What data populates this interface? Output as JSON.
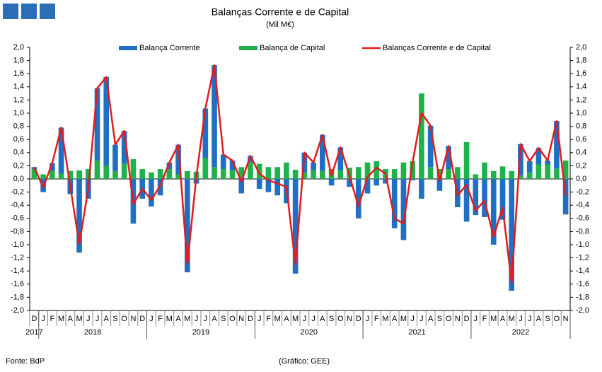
{
  "chart_data": {
    "type": "bar",
    "title": "Balanças Corrente e de Capital",
    "subtitle": "(Mil M€)",
    "source": "Fonte: BdP",
    "credit": "(Gráfico: GEE)",
    "stacked": true,
    "categories": [
      "D",
      "J",
      "F",
      "M",
      "A",
      "M",
      "J",
      "J",
      "A",
      "S",
      "O",
      "N",
      "D",
      "J",
      "F",
      "M",
      "A",
      "M",
      "J",
      "J",
      "A",
      "S",
      "O",
      "N",
      "D",
      "J",
      "F",
      "M",
      "A",
      "M",
      "J",
      "J",
      "A",
      "S",
      "O",
      "N",
      "D",
      "J",
      "F",
      "M",
      "A",
      "M",
      "J",
      "J",
      "A",
      "S",
      "O",
      "N",
      "D",
      "J",
      "F",
      "M",
      "A",
      "M",
      "J",
      "J",
      "A",
      "S",
      "O",
      "N"
    ],
    "years": [
      "2017",
      "2018",
      "2019",
      "2020",
      "2021",
      "2022"
    ],
    "series": [
      {
        "name": "Balança Corrente",
        "type": "bar",
        "color": "#1f6fc5",
        "values": [
          0.03,
          -0.2,
          0.12,
          0.7,
          -0.23,
          -1.12,
          -0.3,
          1.1,
          1.35,
          0.4,
          0.5,
          -0.68,
          -0.3,
          -0.42,
          -0.25,
          0.1,
          0.45,
          -1.42,
          -0.07,
          0.75,
          1.55,
          0.22,
          0.15,
          -0.22,
          0.1,
          -0.15,
          -0.2,
          -0.25,
          -0.37,
          -1.44,
          0.3,
          0.12,
          0.55,
          -0.1,
          0.35,
          -0.12,
          -0.6,
          -0.22,
          -0.1,
          -0.07,
          -0.75,
          -0.93,
          -0.02,
          -0.3,
          0.63,
          -0.18,
          0.35,
          -0.43,
          -0.65,
          -0.55,
          -0.58,
          -1.0,
          -0.62,
          -1.7,
          0.48,
          0.17,
          0.25,
          0.06,
          0.72,
          -0.54
        ]
      },
      {
        "name": "Balança de Capital",
        "type": "bar",
        "color": "#1fb14a",
        "values": [
          0.15,
          0.07,
          0.12,
          0.08,
          0.12,
          0.13,
          0.15,
          0.28,
          0.2,
          0.12,
          0.23,
          0.3,
          0.15,
          0.1,
          0.15,
          0.15,
          0.07,
          0.12,
          0.11,
          0.32,
          0.18,
          0.15,
          0.13,
          0.18,
          0.25,
          0.23,
          0.18,
          0.18,
          0.25,
          0.14,
          0.1,
          0.13,
          0.12,
          0.15,
          0.13,
          0.17,
          0.18,
          0.25,
          0.27,
          0.15,
          0.15,
          0.25,
          0.27,
          1.3,
          0.18,
          0.15,
          0.15,
          0.18,
          0.56,
          0.07,
          0.25,
          0.12,
          0.19,
          0.12,
          0.05,
          0.1,
          0.22,
          0.22,
          0.16,
          0.28
        ]
      },
      {
        "name": "Balanças Corrente e de Capital",
        "type": "line",
        "color": "#e31b1b",
        "values": [
          0.18,
          -0.13,
          0.24,
          0.78,
          -0.11,
          -0.99,
          -0.15,
          1.38,
          1.55,
          0.52,
          0.73,
          -0.38,
          -0.15,
          -0.32,
          -0.1,
          0.25,
          0.52,
          -1.3,
          0.04,
          1.07,
          1.73,
          0.37,
          0.28,
          -0.04,
          0.35,
          0.08,
          -0.02,
          -0.07,
          -0.12,
          -1.3,
          0.4,
          0.25,
          0.67,
          0.05,
          0.48,
          0.05,
          -0.42,
          0.03,
          0.17,
          0.08,
          -0.6,
          -0.68,
          0.25,
          1.0,
          0.81,
          -0.03,
          0.5,
          -0.25,
          -0.09,
          -0.48,
          -0.33,
          -0.88,
          -0.43,
          -1.58,
          0.53,
          0.27,
          0.47,
          0.28,
          0.88,
          -0.26
        ]
      }
    ],
    "ylim": [
      -2,
      2
    ],
    "yticks": [
      {
        "value": 2,
        "label": "2,0"
      },
      {
        "value": 1.8,
        "label": "1,8"
      },
      {
        "value": 1.6,
        "label": "1,6"
      },
      {
        "value": 1.4,
        "label": "1,4"
      },
      {
        "value": 1.2,
        "label": "1,2"
      },
      {
        "value": 1,
        "label": "1,0"
      },
      {
        "value": 0.8,
        "label": "0,8"
      },
      {
        "value": 0.6,
        "label": "0,6"
      },
      {
        "value": 0.4,
        "label": "0,4"
      },
      {
        "value": 0.2,
        "label": "0,2"
      },
      {
        "value": 0,
        "label": "0,0"
      },
      {
        "value": -0.2,
        "label": "-0,2"
      },
      {
        "value": -0.4,
        "label": "-0,4"
      },
      {
        "value": -0.6,
        "label": "-0,6"
      },
      {
        "value": -0.8,
        "label": "-0,8"
      },
      {
        "value": -1,
        "label": "-1,0"
      },
      {
        "value": -1.2,
        "label": "-1,2"
      },
      {
        "value": -1.4,
        "label": "-1,4"
      },
      {
        "value": -1.6,
        "label": "-1,6"
      },
      {
        "value": -1.8,
        "label": "-1,8"
      },
      {
        "value": -2,
        "label": "-2,0"
      }
    ],
    "y2lim": [
      -2,
      2
    ],
    "y2ticks": [
      {
        "value": 2,
        "label": "2,0"
      },
      {
        "value": 1.8,
        "label": "1,8"
      },
      {
        "value": 1.6,
        "label": "1,6"
      },
      {
        "value": 1.4,
        "label": "1,4"
      },
      {
        "value": 1.2,
        "label": "1,2"
      },
      {
        "value": 1,
        "label": "1,0"
      },
      {
        "value": 0.8,
        "label": "0,8"
      },
      {
        "value": 0.6,
        "label": "0,6"
      },
      {
        "value": 0.4,
        "label": "0,4"
      },
      {
        "value": 0.2,
        "label": "0,2"
      },
      {
        "value": 0,
        "label": "0,0"
      },
      {
        "value": -0.2,
        "label": "-0,2"
      },
      {
        "value": -0.4,
        "label": "-0,4"
      },
      {
        "value": -0.6,
        "label": "-0,6"
      },
      {
        "value": -0.8,
        "label": "-0,8"
      },
      {
        "value": -1,
        "label": "-1,0"
      },
      {
        "value": -1.2,
        "label": "-1,2"
      },
      {
        "value": -1.4,
        "label": "-1,4"
      },
      {
        "value": -1.6,
        "label": "-1,6"
      },
      {
        "value": -1.8,
        "label": "-1,8"
      },
      {
        "value": -2,
        "label": "-2,0"
      }
    ],
    "grid": false,
    "legend": "top"
  }
}
